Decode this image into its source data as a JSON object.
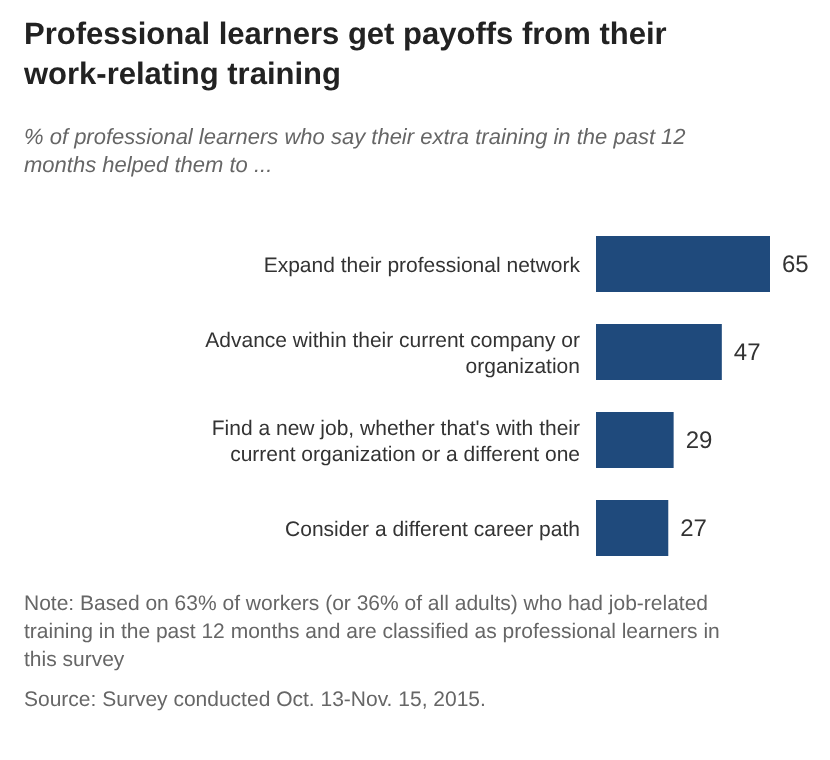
{
  "chart_data": {
    "type": "bar",
    "orientation": "horizontal",
    "title": "Professional learners get payoffs from their work-relating training",
    "subtitle": "% of professional learners who say their extra training in the past 12 months helped them to ...",
    "categories": [
      "Expand their professional network",
      "Advance within their current company or organization",
      "Find a new job, whether that's with their current organization or a different one",
      "Consider a different career path"
    ],
    "values": [
      65,
      47,
      29,
      27
    ],
    "color": "#1f4a7c",
    "data_labels": true,
    "annotations": [
      "Note: Based on 63% of workers (or 36% of all adults) who had job-related training in the past 12 months and are classified as professional learners in this survey",
      "Source: Survey conducted Oct. 13-Nov. 15, 2015."
    ]
  }
}
